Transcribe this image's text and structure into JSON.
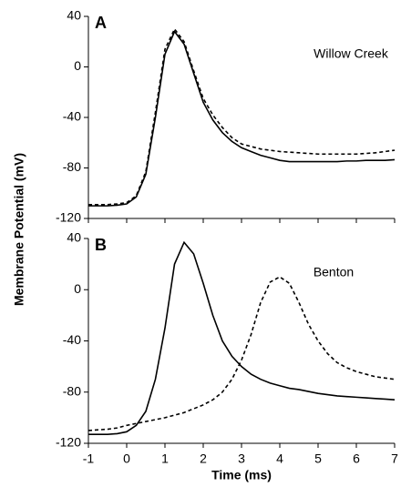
{
  "chart_data": [
    {
      "type": "line",
      "panel": "A",
      "annotation": "Willow Creek",
      "ylabel": "Membrane Potential (mV)",
      "x": [
        -1,
        -0.75,
        -0.5,
        -0.25,
        0,
        0.25,
        0.5,
        0.75,
        1,
        1.25,
        1.5,
        1.75,
        2,
        2.25,
        2.5,
        2.75,
        3,
        3.25,
        3.5,
        3.75,
        4,
        4.25,
        4.5,
        4.75,
        5,
        5.25,
        5.5,
        5.75,
        6,
        6.25,
        6.5,
        6.75,
        7
      ],
      "series": [
        {
          "style": "solid",
          "color": "#000000",
          "values": [
            -110,
            -110,
            -110,
            -109.5,
            -108.5,
            -103,
            -85,
            -40,
            10,
            28,
            18,
            -5,
            -28,
            -42,
            -52,
            -59,
            -64,
            -67,
            -70,
            -72,
            -74,
            -75,
            -75,
            -75,
            -75,
            -75,
            -75,
            -74.5,
            -74.5,
            -74,
            -74,
            -74,
            -73.5
          ]
        },
        {
          "style": "dashed",
          "color": "#000000",
          "values": [
            -109,
            -109,
            -109,
            -108.5,
            -107.5,
            -102,
            -83,
            -36,
            14,
            30,
            20,
            -3,
            -25,
            -38,
            -48,
            -56,
            -61,
            -63,
            -65,
            -66,
            -67,
            -67.5,
            -68,
            -68.5,
            -69,
            -69,
            -69,
            -69,
            -69,
            -68.5,
            -68,
            -67,
            -66
          ]
        }
      ],
      "xlim": [
        -1,
        7
      ],
      "ylim": [
        -120,
        40
      ],
      "yticks": [
        40,
        0,
        -40,
        -80,
        -120
      ]
    },
    {
      "type": "line",
      "panel": "B",
      "annotation": "Benton",
      "xlabel": "Time (ms)",
      "x": [
        -1,
        -0.75,
        -0.5,
        -0.25,
        0,
        0.25,
        0.5,
        0.75,
        1,
        1.25,
        1.5,
        1.75,
        2,
        2.25,
        2.5,
        2.75,
        3,
        3.25,
        3.5,
        3.75,
        4,
        4.25,
        4.5,
        4.75,
        5,
        5.25,
        5.5,
        5.75,
        6,
        6.25,
        6.5,
        6.75,
        7
      ],
      "series": [
        {
          "style": "solid",
          "color": "#000000",
          "values": [
            -113,
            -113,
            -113,
            -112.5,
            -111,
            -106,
            -95,
            -70,
            -30,
            20,
            37,
            28,
            5,
            -20,
            -40,
            -52,
            -60,
            -66,
            -70,
            -73,
            -75,
            -77,
            -78,
            -79.5,
            -81,
            -82,
            -83,
            -83.5,
            -84,
            -84.5,
            -85,
            -85.5,
            -86
          ]
        },
        {
          "style": "dashed",
          "color": "#000000",
          "values": [
            -110,
            -109.5,
            -109,
            -108,
            -106,
            -104.5,
            -103,
            -101.5,
            -100,
            -98,
            -96,
            -93,
            -90,
            -86,
            -80,
            -70,
            -55,
            -35,
            -10,
            6,
            10,
            5,
            -10,
            -27,
            -40,
            -50,
            -57,
            -61,
            -64,
            -66,
            -68,
            -69,
            -70
          ]
        }
      ],
      "xlim": [
        -1,
        7
      ],
      "ylim": [
        -120,
        40
      ],
      "yticks": [
        40,
        0,
        -40,
        -80,
        -120
      ],
      "xticks": [
        -1,
        0,
        1,
        2,
        3,
        4,
        5,
        6,
        7
      ]
    }
  ]
}
